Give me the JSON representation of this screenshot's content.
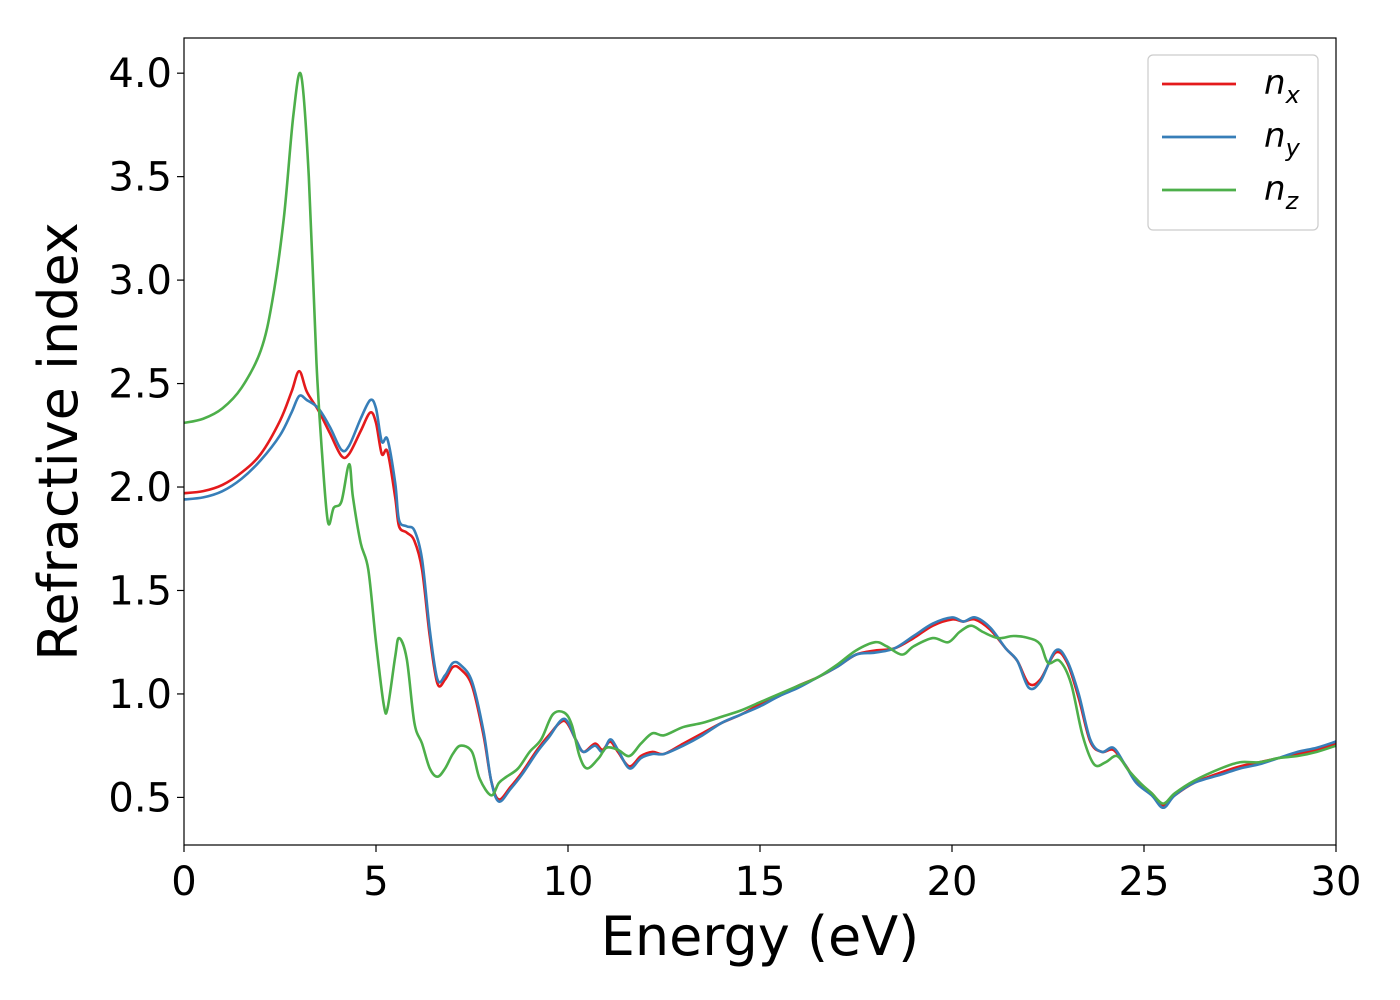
{
  "chart_data": {
    "type": "line",
    "xlabel": "Energy (eV)",
    "ylabel": "Refractive index",
    "xlim": [
      0,
      30
    ],
    "ylim": [
      0.27,
      4.17
    ],
    "xticks": [
      0,
      5,
      10,
      15,
      20,
      25,
      30
    ],
    "yticks": [
      0.5,
      1.0,
      1.5,
      2.0,
      2.5,
      3.0,
      3.5,
      4.0
    ],
    "xtick_labels": [
      "0",
      "5",
      "10",
      "15",
      "20",
      "25",
      "30"
    ],
    "ytick_labels": [
      "0.5",
      "1.0",
      "1.5",
      "2.0",
      "2.5",
      "3.0",
      "3.5",
      "4.0"
    ],
    "grid": false,
    "legend_position": "top-right",
    "series": [
      {
        "name": "n_x",
        "label_main": "n",
        "label_sub": "x",
        "color": "#e41a1c",
        "points": [
          [
            0,
            1.97
          ],
          [
            0.5,
            1.98
          ],
          [
            1.0,
            2.01
          ],
          [
            1.5,
            2.07
          ],
          [
            2.0,
            2.16
          ],
          [
            2.5,
            2.32
          ],
          [
            2.8,
            2.46
          ],
          [
            3.0,
            2.56
          ],
          [
            3.2,
            2.46
          ],
          [
            3.5,
            2.37
          ],
          [
            3.8,
            2.26
          ],
          [
            4.1,
            2.15
          ],
          [
            4.3,
            2.16
          ],
          [
            4.6,
            2.27
          ],
          [
            4.85,
            2.36
          ],
          [
            5.0,
            2.31
          ],
          [
            5.15,
            2.16
          ],
          [
            5.3,
            2.17
          ],
          [
            5.5,
            1.95
          ],
          [
            5.6,
            1.81
          ],
          [
            5.8,
            1.78
          ],
          [
            6.0,
            1.74
          ],
          [
            6.2,
            1.6
          ],
          [
            6.4,
            1.28
          ],
          [
            6.6,
            1.05
          ],
          [
            6.8,
            1.07
          ],
          [
            7.0,
            1.13
          ],
          [
            7.2,
            1.12
          ],
          [
            7.5,
            1.04
          ],
          [
            7.8,
            0.8
          ],
          [
            8.0,
            0.58
          ],
          [
            8.2,
            0.49
          ],
          [
            8.5,
            0.55
          ],
          [
            8.8,
            0.62
          ],
          [
            9.2,
            0.73
          ],
          [
            9.5,
            0.8
          ],
          [
            9.9,
            0.87
          ],
          [
            10.2,
            0.78
          ],
          [
            10.4,
            0.72
          ],
          [
            10.7,
            0.76
          ],
          [
            10.9,
            0.73
          ],
          [
            11.1,
            0.77
          ],
          [
            11.3,
            0.72
          ],
          [
            11.6,
            0.65
          ],
          [
            11.9,
            0.7
          ],
          [
            12.2,
            0.72
          ],
          [
            12.5,
            0.71
          ],
          [
            13,
            0.76
          ],
          [
            13.5,
            0.81
          ],
          [
            14,
            0.86
          ],
          [
            14.5,
            0.9
          ],
          [
            15,
            0.95
          ],
          [
            15.5,
            0.99
          ],
          [
            16,
            1.04
          ],
          [
            16.5,
            1.08
          ],
          [
            17,
            1.13
          ],
          [
            17.5,
            1.19
          ],
          [
            18,
            1.21
          ],
          [
            18.5,
            1.22
          ],
          [
            19,
            1.27
          ],
          [
            19.5,
            1.33
          ],
          [
            20,
            1.36
          ],
          [
            20.3,
            1.35
          ],
          [
            20.6,
            1.36
          ],
          [
            21,
            1.31
          ],
          [
            21.4,
            1.22
          ],
          [
            21.7,
            1.16
          ],
          [
            22.0,
            1.05
          ],
          [
            22.3,
            1.07
          ],
          [
            22.7,
            1.2
          ],
          [
            23.0,
            1.15
          ],
          [
            23.3,
            0.98
          ],
          [
            23.6,
            0.77
          ],
          [
            23.9,
            0.72
          ],
          [
            24.2,
            0.73
          ],
          [
            24.5,
            0.66
          ],
          [
            24.8,
            0.58
          ],
          [
            25.2,
            0.52
          ],
          [
            25.5,
            0.46
          ],
          [
            25.8,
            0.51
          ],
          [
            26.3,
            0.57
          ],
          [
            27,
            0.62
          ],
          [
            27.5,
            0.65
          ],
          [
            28,
            0.67
          ],
          [
            28.5,
            0.69
          ],
          [
            29,
            0.71
          ],
          [
            29.5,
            0.73
          ],
          [
            30,
            0.76
          ]
        ]
      },
      {
        "name": "n_y",
        "label_main": "n",
        "label_sub": "y",
        "color": "#377eb8",
        "points": [
          [
            0,
            1.94
          ],
          [
            0.5,
            1.95
          ],
          [
            1.0,
            1.98
          ],
          [
            1.5,
            2.04
          ],
          [
            2.0,
            2.13
          ],
          [
            2.5,
            2.25
          ],
          [
            2.8,
            2.36
          ],
          [
            3.0,
            2.44
          ],
          [
            3.2,
            2.42
          ],
          [
            3.5,
            2.38
          ],
          [
            3.8,
            2.29
          ],
          [
            4.1,
            2.18
          ],
          [
            4.3,
            2.2
          ],
          [
            4.6,
            2.33
          ],
          [
            4.85,
            2.42
          ],
          [
            5.0,
            2.38
          ],
          [
            5.15,
            2.22
          ],
          [
            5.3,
            2.23
          ],
          [
            5.5,
            2.02
          ],
          [
            5.6,
            1.84
          ],
          [
            5.8,
            1.81
          ],
          [
            6.0,
            1.79
          ],
          [
            6.2,
            1.65
          ],
          [
            6.4,
            1.31
          ],
          [
            6.6,
            1.07
          ],
          [
            6.8,
            1.09
          ],
          [
            7.0,
            1.15
          ],
          [
            7.2,
            1.14
          ],
          [
            7.5,
            1.06
          ],
          [
            7.8,
            0.82
          ],
          [
            8.0,
            0.58
          ],
          [
            8.2,
            0.48
          ],
          [
            8.5,
            0.54
          ],
          [
            8.8,
            0.61
          ],
          [
            9.2,
            0.72
          ],
          [
            9.5,
            0.79
          ],
          [
            9.9,
            0.88
          ],
          [
            10.2,
            0.78
          ],
          [
            10.4,
            0.72
          ],
          [
            10.7,
            0.75
          ],
          [
            10.9,
            0.72
          ],
          [
            11.1,
            0.78
          ],
          [
            11.3,
            0.73
          ],
          [
            11.6,
            0.64
          ],
          [
            11.9,
            0.69
          ],
          [
            12.2,
            0.71
          ],
          [
            12.5,
            0.71
          ],
          [
            13,
            0.75
          ],
          [
            13.5,
            0.8
          ],
          [
            14,
            0.86
          ],
          [
            14.5,
            0.9
          ],
          [
            15,
            0.94
          ],
          [
            15.5,
            0.99
          ],
          [
            16,
            1.03
          ],
          [
            16.5,
            1.08
          ],
          [
            17,
            1.13
          ],
          [
            17.5,
            1.19
          ],
          [
            18,
            1.2
          ],
          [
            18.5,
            1.22
          ],
          [
            19,
            1.28
          ],
          [
            19.5,
            1.34
          ],
          [
            20,
            1.37
          ],
          [
            20.3,
            1.35
          ],
          [
            20.6,
            1.37
          ],
          [
            21,
            1.32
          ],
          [
            21.4,
            1.22
          ],
          [
            21.7,
            1.16
          ],
          [
            22.0,
            1.03
          ],
          [
            22.3,
            1.06
          ],
          [
            22.7,
            1.21
          ],
          [
            23.0,
            1.16
          ],
          [
            23.3,
            1.0
          ],
          [
            23.6,
            0.78
          ],
          [
            23.9,
            0.72
          ],
          [
            24.2,
            0.74
          ],
          [
            24.5,
            0.66
          ],
          [
            24.8,
            0.57
          ],
          [
            25.2,
            0.51
          ],
          [
            25.5,
            0.45
          ],
          [
            25.8,
            0.51
          ],
          [
            26.3,
            0.57
          ],
          [
            27,
            0.61
          ],
          [
            27.5,
            0.64
          ],
          [
            28,
            0.66
          ],
          [
            28.5,
            0.69
          ],
          [
            29,
            0.72
          ],
          [
            29.5,
            0.74
          ],
          [
            30,
            0.77
          ]
        ]
      },
      {
        "name": "n_z",
        "label_main": "n",
        "label_sub": "z",
        "color": "#4daf4a",
        "points": [
          [
            0,
            2.31
          ],
          [
            0.5,
            2.33
          ],
          [
            1.0,
            2.38
          ],
          [
            1.5,
            2.48
          ],
          [
            2.0,
            2.66
          ],
          [
            2.3,
            2.9
          ],
          [
            2.6,
            3.3
          ],
          [
            2.85,
            3.8
          ],
          [
            3.05,
            3.99
          ],
          [
            3.25,
            3.5
          ],
          [
            3.45,
            2.6
          ],
          [
            3.6,
            2.15
          ],
          [
            3.75,
            1.83
          ],
          [
            3.9,
            1.9
          ],
          [
            4.1,
            1.93
          ],
          [
            4.3,
            2.11
          ],
          [
            4.4,
            1.95
          ],
          [
            4.6,
            1.73
          ],
          [
            4.8,
            1.6
          ],
          [
            5.0,
            1.25
          ],
          [
            5.2,
            0.95
          ],
          [
            5.3,
            0.93
          ],
          [
            5.5,
            1.18
          ],
          [
            5.6,
            1.27
          ],
          [
            5.8,
            1.17
          ],
          [
            6.0,
            0.86
          ],
          [
            6.2,
            0.76
          ],
          [
            6.4,
            0.64
          ],
          [
            6.6,
            0.6
          ],
          [
            6.8,
            0.64
          ],
          [
            7.0,
            0.71
          ],
          [
            7.2,
            0.75
          ],
          [
            7.5,
            0.72
          ],
          [
            7.7,
            0.59
          ],
          [
            8.0,
            0.51
          ],
          [
            8.2,
            0.57
          ],
          [
            8.4,
            0.6
          ],
          [
            8.7,
            0.64
          ],
          [
            9.0,
            0.72
          ],
          [
            9.3,
            0.78
          ],
          [
            9.6,
            0.9
          ],
          [
            9.9,
            0.91
          ],
          [
            10.1,
            0.85
          ],
          [
            10.3,
            0.7
          ],
          [
            10.5,
            0.64
          ],
          [
            10.8,
            0.69
          ],
          [
            11.0,
            0.74
          ],
          [
            11.3,
            0.73
          ],
          [
            11.6,
            0.7
          ],
          [
            11.9,
            0.76
          ],
          [
            12.2,
            0.81
          ],
          [
            12.5,
            0.8
          ],
          [
            13,
            0.84
          ],
          [
            13.5,
            0.86
          ],
          [
            14,
            0.89
          ],
          [
            14.5,
            0.92
          ],
          [
            15,
            0.96
          ],
          [
            15.5,
            1.0
          ],
          [
            16,
            1.04
          ],
          [
            16.5,
            1.08
          ],
          [
            17,
            1.14
          ],
          [
            17.5,
            1.21
          ],
          [
            18,
            1.25
          ],
          [
            18.3,
            1.23
          ],
          [
            18.7,
            1.19
          ],
          [
            19,
            1.23
          ],
          [
            19.5,
            1.27
          ],
          [
            19.9,
            1.25
          ],
          [
            20.2,
            1.3
          ],
          [
            20.5,
            1.33
          ],
          [
            20.8,
            1.3
          ],
          [
            21.2,
            1.27
          ],
          [
            21.6,
            1.28
          ],
          [
            22.0,
            1.27
          ],
          [
            22.3,
            1.24
          ],
          [
            22.5,
            1.15
          ],
          [
            22.8,
            1.16
          ],
          [
            23.1,
            1.05
          ],
          [
            23.4,
            0.8
          ],
          [
            23.7,
            0.66
          ],
          [
            24.0,
            0.67
          ],
          [
            24.3,
            0.7
          ],
          [
            24.6,
            0.63
          ],
          [
            24.9,
            0.57
          ],
          [
            25.2,
            0.52
          ],
          [
            25.5,
            0.47
          ],
          [
            25.8,
            0.52
          ],
          [
            26.3,
            0.58
          ],
          [
            27,
            0.64
          ],
          [
            27.5,
            0.67
          ],
          [
            28,
            0.67
          ],
          [
            28.5,
            0.69
          ],
          [
            29,
            0.7
          ],
          [
            29.5,
            0.72
          ],
          [
            30,
            0.75
          ]
        ]
      }
    ]
  }
}
